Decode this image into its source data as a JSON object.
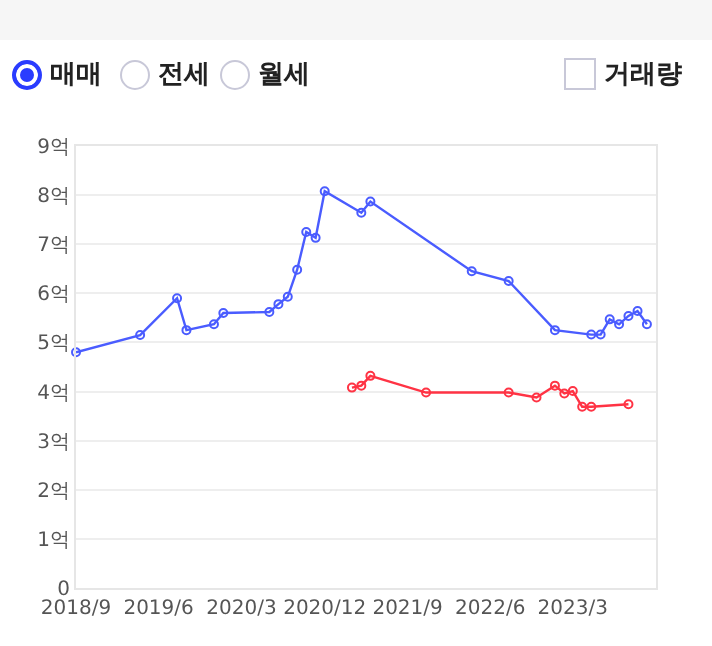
{
  "chart_data": {
    "type": "line",
    "annotations": [
      "매매",
      "전세",
      "월세",
      "거래량"
    ],
    "series": [
      {
        "color": "#4a5cff",
        "x": [
          "2018-09",
          "2019-04",
          "2019-08",
          "2019-09",
          "2019-12",
          "2020-01",
          "2020-06",
          "2020-07",
          "2020-08",
          "2020-09",
          "2020-10",
          "2020-11",
          "2020-12",
          "2021-04",
          "2021-05",
          "2022-04",
          "2022-08",
          "2023-01",
          "2023-05",
          "2023-06",
          "2023-07",
          "2023-08",
          "2023-09",
          "2023-10",
          "2023-11"
        ],
        "values": [
          4.8,
          5.15,
          5.9,
          5.25,
          5.37,
          5.6,
          5.62,
          5.78,
          5.93,
          6.48,
          7.25,
          7.13,
          8.08,
          7.64,
          7.87,
          6.45,
          6.25,
          5.25,
          5.16,
          5.16,
          5.47,
          5.37,
          5.54,
          5.64,
          5.37
        ]
      },
      {
        "color": "#ff3344",
        "x": [
          "2021-03",
          "2021-04",
          "2021-05",
          "2021-11",
          "2022-08",
          "2022-11",
          "2023-01",
          "2023-02",
          "2023-03",
          "2023-04",
          "2023-05",
          "2023-09"
        ],
        "values": [
          4.08,
          4.12,
          4.32,
          3.98,
          3.98,
          3.88,
          4.12,
          3.96,
          4.01,
          3.69,
          3.69,
          3.74
        ]
      }
    ],
    "xlim": [
      "2018-09",
      "2023-12"
    ],
    "xticks": [
      {
        "value": "2018-09",
        "label": "2018/9"
      },
      {
        "value": "2019-06",
        "label": "2019/6"
      },
      {
        "value": "2020-03",
        "label": "2020/3"
      },
      {
        "value": "2020-12",
        "label": "2020/12"
      },
      {
        "value": "2021-09",
        "label": "2021/9"
      },
      {
        "value": "2022-06",
        "label": "2022/6"
      },
      {
        "value": "2023-03",
        "label": "2023/3"
      }
    ],
    "ylim": [
      0,
      9
    ],
    "yticks": [
      0,
      {
        "value": 1,
        "label": "1억"
      },
      {
        "value": 2,
        "label": "2억"
      },
      {
        "value": 3,
        "label": "3억"
      },
      {
        "value": 4,
        "label": "4억"
      },
      {
        "value": 5,
        "label": "5억"
      },
      {
        "value": 6,
        "label": "6억"
      },
      {
        "value": 7,
        "label": "7억"
      },
      {
        "value": 8,
        "label": "8억"
      },
      {
        "value": 9,
        "label": "9억"
      }
    ],
    "grid": "y",
    "marker": "circle",
    "line_style": "solid"
  }
}
